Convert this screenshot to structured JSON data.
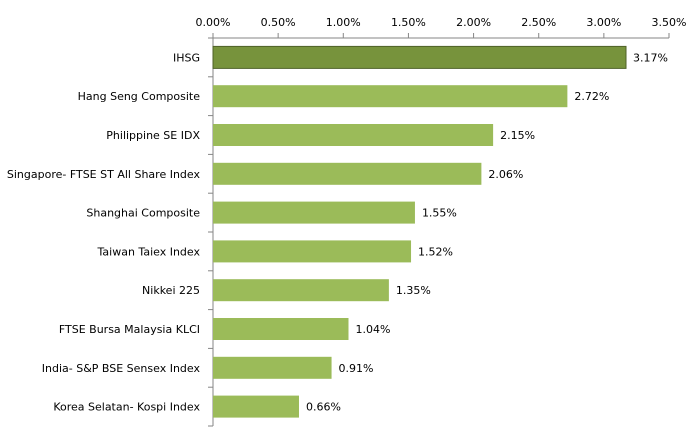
{
  "chart_data": {
    "type": "bar",
    "orientation": "horizontal",
    "categories": [
      "IHSG",
      "Hang Seng Composite",
      "Philippine SE IDX",
      "Singapore- FTSE ST All Share Index",
      "Shanghai Composite",
      "Taiwan Taiex Index",
      "Nikkei 225",
      "FTSE Bursa Malaysia  KLCI",
      "India- S&P BSE Sensex Index",
      "Korea Selatan- Kospi Index"
    ],
    "values": [
      3.17,
      2.72,
      2.15,
      2.06,
      1.55,
      1.52,
      1.35,
      1.04,
      0.91,
      0.66
    ],
    "data_labels": [
      "3.17%",
      "2.72%",
      "2.15%",
      "2.06%",
      "1.55%",
      "1.52%",
      "1.35%",
      "1.04%",
      "0.91%",
      "0.66%"
    ],
    "x_ticks": [
      0,
      0.5,
      1.0,
      1.5,
      2.0,
      2.5,
      3.0,
      3.5
    ],
    "x_tick_labels": [
      "0.00%",
      "0.50%",
      "1.00%",
      "1.50%",
      "2.00%",
      "2.50%",
      "3.00%",
      "3.50%"
    ],
    "xlim": [
      0,
      3.5
    ],
    "x_axis_position": "top",
    "grid": false,
    "legend": "none",
    "title": "",
    "xlabel": "",
    "ylabel": "",
    "colors": {
      "bar": "#9bbb59",
      "highlight_bar": "#77933c",
      "highlight_stroke": "#4f6228"
    },
    "highlight_index": 0
  }
}
